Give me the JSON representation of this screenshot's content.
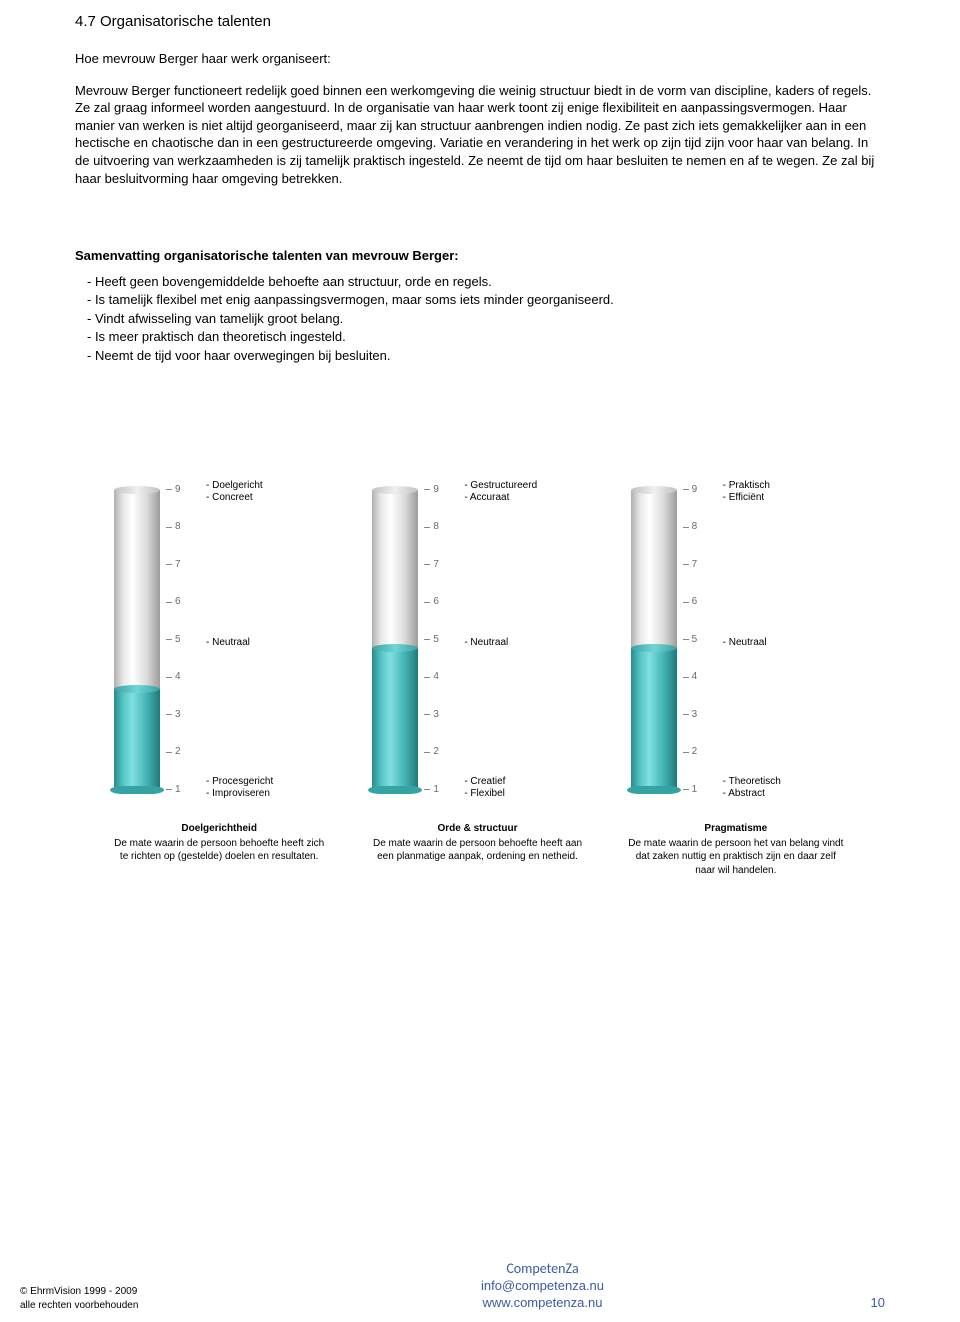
{
  "header": {
    "section_title": "4.7 Organisatorische talenten",
    "intro_line": "Hoe mevrouw Berger haar werk organiseert:",
    "body_paragraph": "Mevrouw Berger functioneert redelijk goed binnen een werkomgeving die weinig structuur biedt in de vorm van discipline, kaders of regels. Ze zal graag informeel worden aangestuurd. In de organisatie van haar werk toont zij enige flexibiliteit en aanpassingsvermogen. Haar manier van werken is niet altijd georganiseerd, maar zij kan structuur aanbrengen indien nodig. Ze past zich iets gemakkelijker aan in een hectische en chaotische dan in een gestructureerde omgeving. Variatie en verandering in het werk op zijn tijd zijn voor haar van belang. In de uitvoering van werkzaamheden is zij tamelijk praktisch ingesteld. Ze neemt de tijd om haar besluiten te nemen en af te wegen. Ze zal bij haar besluitvorming haar omgeving betrekken."
  },
  "summary": {
    "title": "Samenvatting organisatorische talenten van mevrouw Berger:",
    "items": [
      "- Heeft geen bovengemiddelde behoefte aan structuur, orde en regels.",
      "- Is tamelijk flexibel met enig aanpassingsvermogen, maar soms iets minder georganiseerd.",
      "- Vindt afwisseling van tamelijk groot belang.",
      "- Is meer praktisch dan theoretisch ingesteld.",
      "- Neemt de tijd voor haar overwegingen bij besluiten."
    ]
  },
  "chart": {
    "scale_min": 1,
    "scale_max": 9,
    "tube_total_height": 300,
    "empty_gradient": "silver",
    "fill_color": "#45b5b5",
    "columns": [
      {
        "fill_level": 3.7,
        "top_labels": [
          "- Doelgericht",
          "- Concreet"
        ],
        "mid_label": "- Neutraal",
        "bottom_labels": [
          "- Procesgericht",
          "- Improviseren"
        ],
        "desc_title": "Doelgerichtheid",
        "desc_text": "De mate waarin de persoon behoefte heeft zich te richten op (gestelde) doelen en resultaten."
      },
      {
        "fill_level": 4.8,
        "top_labels": [
          "- Gestructureerd",
          "- Accuraat"
        ],
        "mid_label": "- Neutraal",
        "bottom_labels": [
          "- Creatief",
          "- Flexibel"
        ],
        "desc_title": "Orde & structuur",
        "desc_text": "De mate waarin de persoon behoefte heeft aan een planmatige aanpak, ordening en netheid."
      },
      {
        "fill_level": 4.8,
        "top_labels": [
          "- Praktisch",
          "- Efficiënt"
        ],
        "mid_label": "- Neutraal",
        "bottom_labels": [
          "- Theoretisch",
          "- Abstract"
        ],
        "desc_title": "Pragmatisme",
        "desc_text": "De mate waarin de persoon het van belang vindt dat zaken nuttig en praktisch zijn en daar zelf naar wil handelen."
      }
    ]
  },
  "footer": {
    "copyright": "© EhrmVision 1999 - 2009",
    "rights": "alle rechten voorbehouden",
    "brand": "CompetenZa",
    "email": "info@competenza.nu",
    "url": "www.competenza.nu",
    "page_number": "10"
  }
}
